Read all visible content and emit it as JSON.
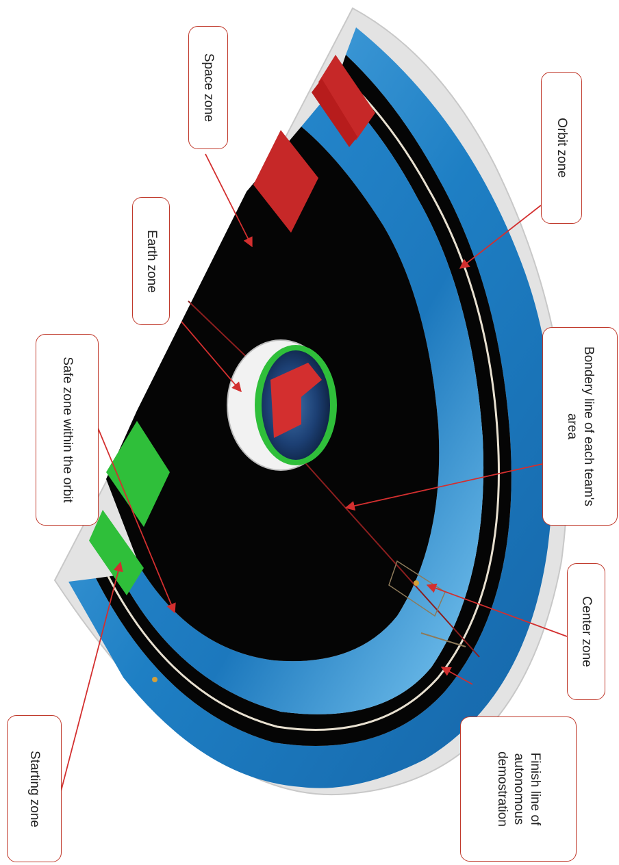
{
  "labels": {
    "space_zone": "Space zone",
    "earth_zone": "Earth zone",
    "safe_zone": "Safe zone within the orbit",
    "starting_zone": "Starting zone",
    "orbit_zone": "Orbit zone",
    "boundary_line": "Bondery line of each team's area",
    "center_zone": "Center zone",
    "finish_line": "Finish line of autonomous demostration"
  },
  "colors": {
    "callout_border": "#c0392b",
    "arrow": "#d32f2f",
    "track_blue": "#1e88c8",
    "floor_black": "#050505",
    "red_zone": "#c62828",
    "green_zone": "#2fbf3a",
    "wall_grey": "#dcdcdc"
  }
}
